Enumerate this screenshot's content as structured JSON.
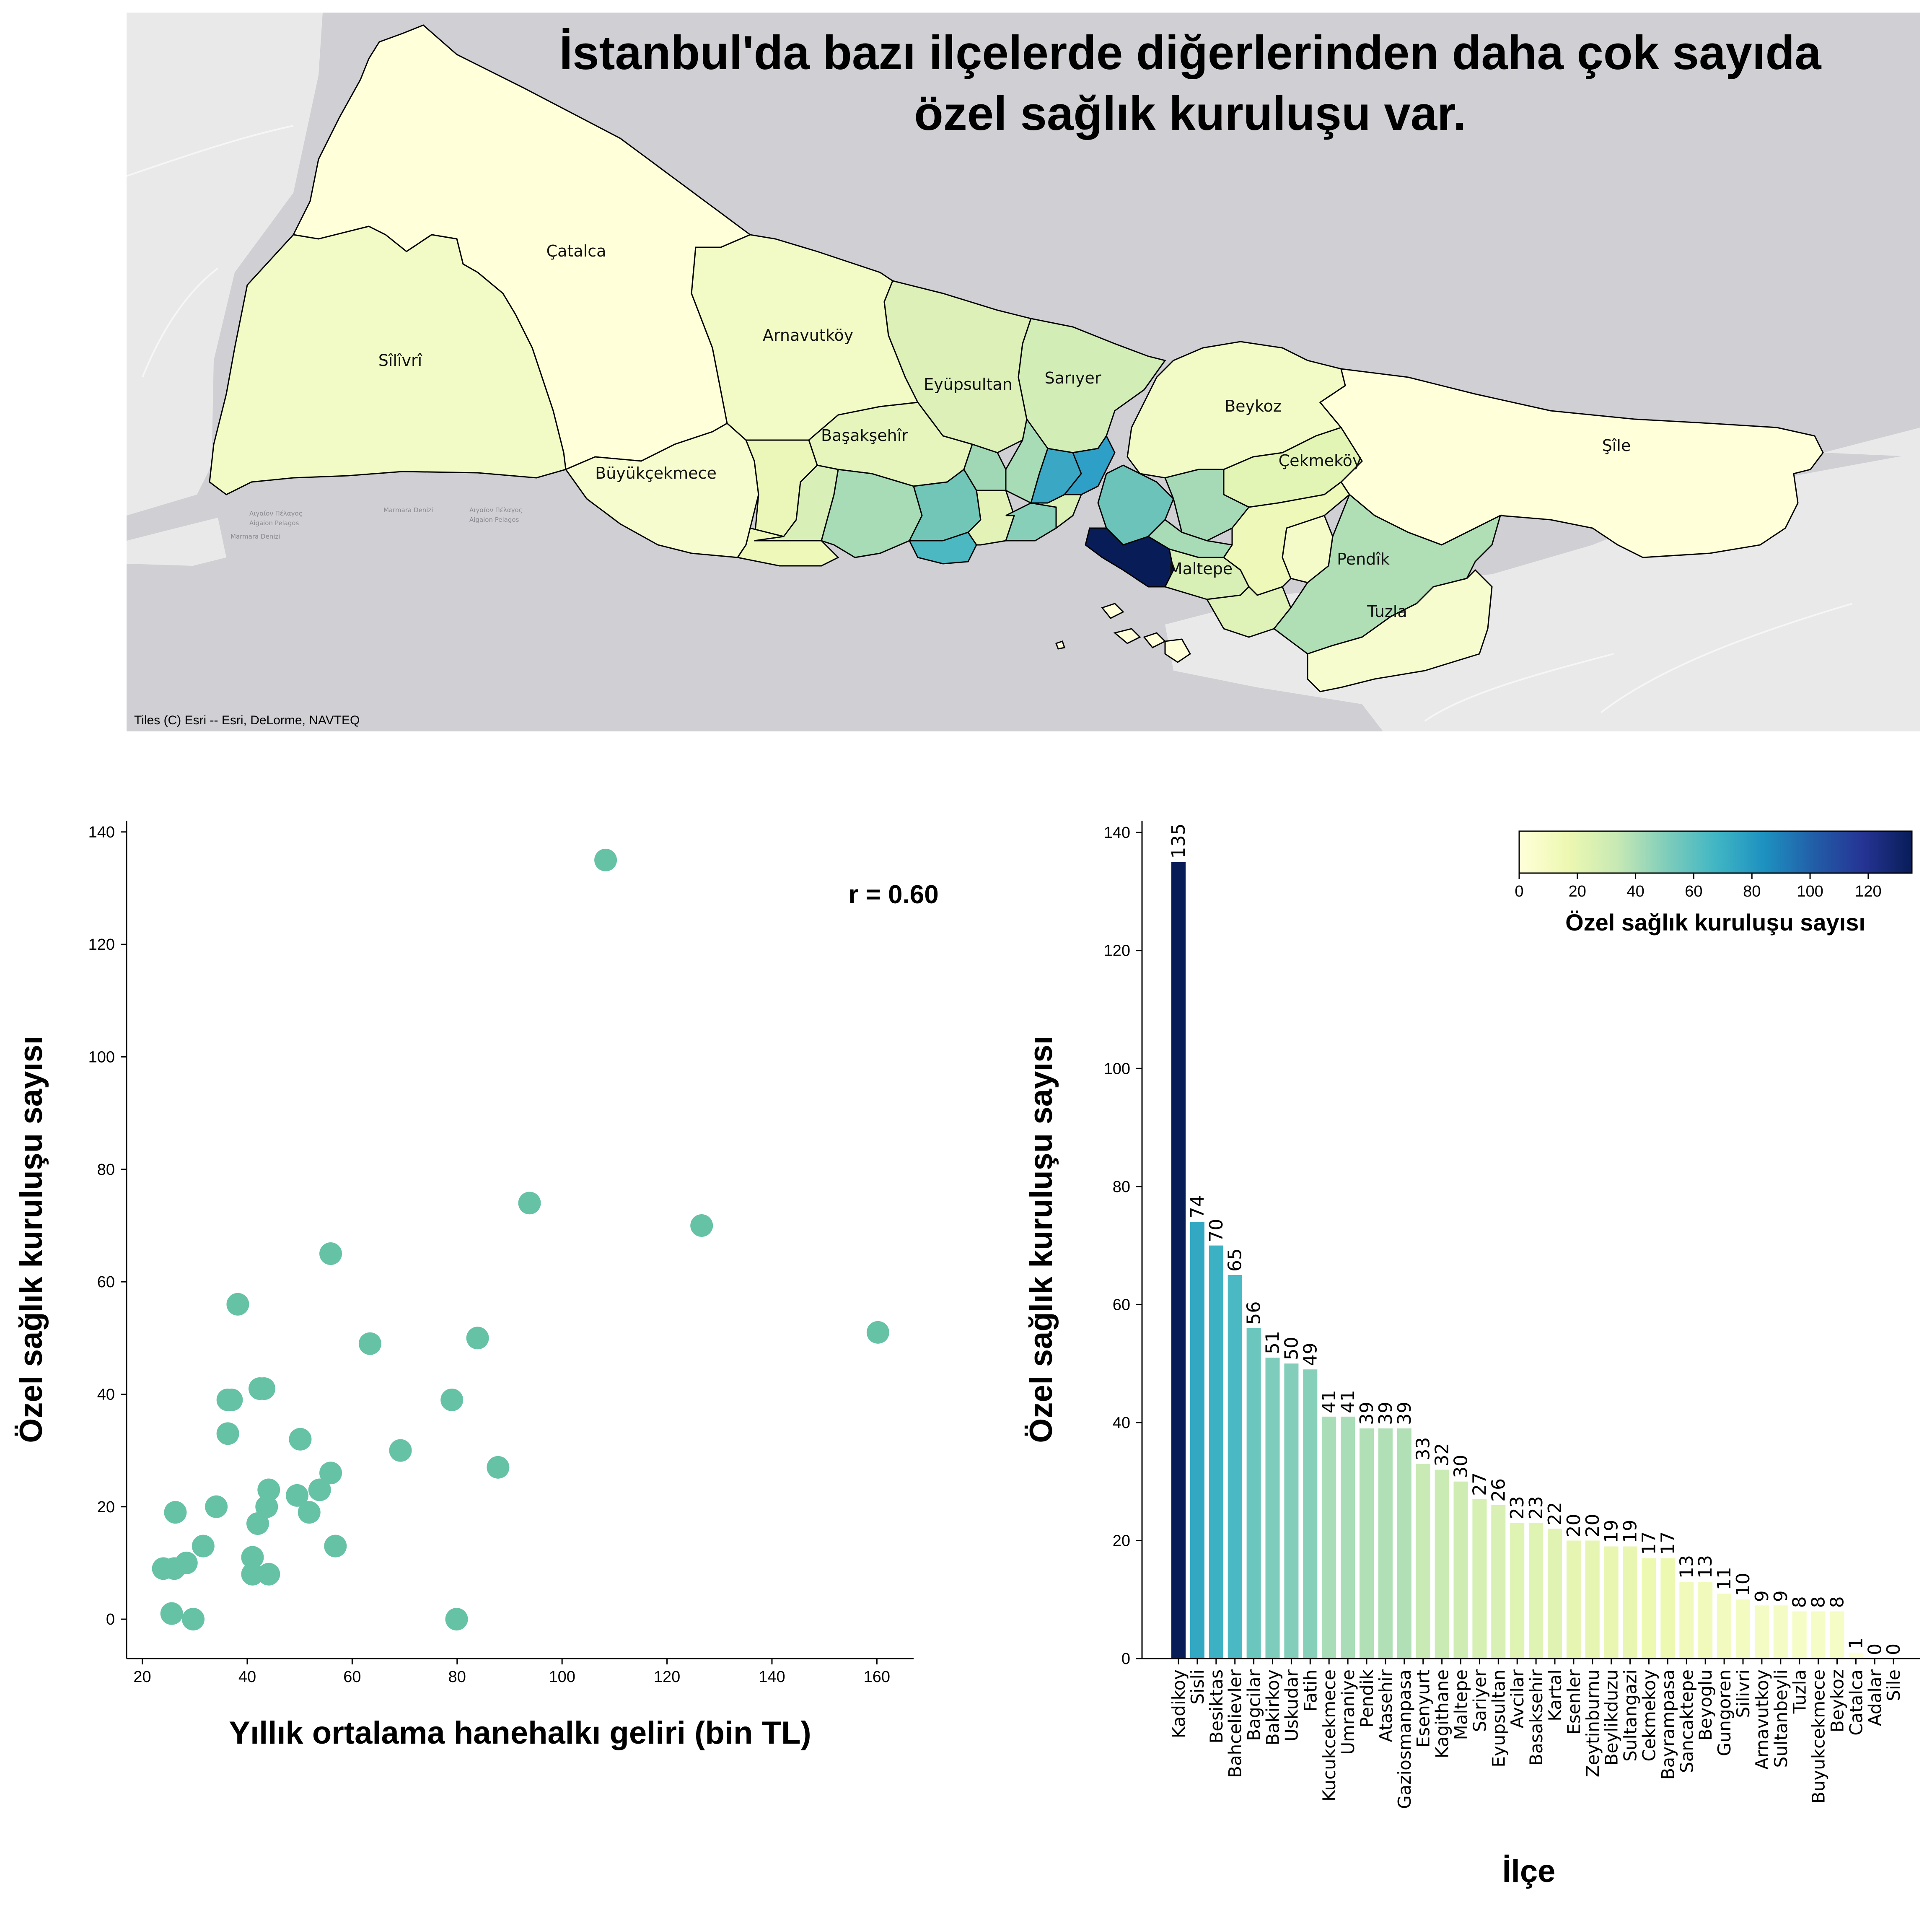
{
  "figure": {
    "title_line1": "İstanbul'da bazı ilçelerde diğerlerinden daha çok sayıda",
    "title_line2": "özel sağlık kuruluşu var."
  },
  "map": {
    "attribution": "Tiles (C) Esri -- Esri, DeLorme, NAVTEQ",
    "sea_labels": [
      "Αιγαίον Πέλαγος",
      "Aigaion Pelagos",
      "Marmara Denizi",
      "Marmara Denizi",
      "Αιγαίον Πέλαγος",
      "Aigaion Pelagos"
    ],
    "district_labels": [
      "Çatalca",
      "Sîlîvrî",
      "Arnavutköy",
      "Eyüpsultan",
      "Sarıyer",
      "Başakşehîr",
      "Büyükçekmece",
      "Beykoz",
      "Çekmeköy",
      "Şîle",
      "Maltepe",
      "Pendîk",
      "Tuzla"
    ],
    "colors": {
      "sea": "#cfcfd4",
      "land_background": "#e9e9e9",
      "district_border": "#000000"
    }
  },
  "colorbar": {
    "label": "Özel sağlık kuruluşu sayısı",
    "ticks": [
      "0",
      "20",
      "40",
      "60",
      "80",
      "100",
      "120"
    ],
    "colormap": "YlGnBu",
    "range": [
      0,
      135
    ]
  },
  "chart_data": [
    {
      "type": "scatter",
      "title": "",
      "xlabel": "Yıllık ortalama hanehalkı geliri (bin TL)",
      "ylabel": "Özel sağlık kuruluşu sayısı",
      "annotation": "r = 0.60",
      "xlim": [
        17,
        167
      ],
      "ylim": [
        -7,
        142
      ],
      "xticks": [
        20,
        40,
        60,
        80,
        100,
        120,
        140,
        160
      ],
      "yticks": [
        0,
        20,
        40,
        60,
        80,
        100,
        120,
        140
      ],
      "marker_color": "#66c2a5",
      "grid": false,
      "points": [
        [
          108.3,
          135
        ],
        [
          93.8,
          74
        ],
        [
          126.6,
          70
        ],
        [
          55.9,
          65
        ],
        [
          38.2,
          56
        ],
        [
          160.2,
          51
        ],
        [
          83.9,
          50
        ],
        [
          63.4,
          49
        ],
        [
          43.2,
          41
        ],
        [
          42.4,
          41
        ],
        [
          36.3,
          39
        ],
        [
          37.0,
          39
        ],
        [
          79.0,
          39
        ],
        [
          36.3,
          33
        ],
        [
          50.1,
          32
        ],
        [
          69.2,
          30
        ],
        [
          87.8,
          27
        ],
        [
          55.9,
          26
        ],
        [
          44.1,
          23
        ],
        [
          53.8,
          23
        ],
        [
          49.5,
          22
        ],
        [
          34.1,
          20
        ],
        [
          43.7,
          20
        ],
        [
          26.3,
          19
        ],
        [
          51.8,
          19
        ],
        [
          42.0,
          17
        ],
        [
          31.6,
          13
        ],
        [
          56.8,
          13
        ],
        [
          41.0,
          11
        ],
        [
          28.4,
          10
        ],
        [
          24.0,
          9
        ],
        [
          26.1,
          9
        ],
        [
          41.0,
          8
        ],
        [
          44.1,
          8
        ],
        [
          25.6,
          1
        ],
        [
          29.7,
          0
        ],
        [
          79.9,
          0
        ]
      ]
    },
    {
      "type": "bar",
      "title": "",
      "xlabel": "İlçe",
      "ylabel": "Özel sağlık kuruluşu sayısı",
      "ylim": [
        0,
        142
      ],
      "yticks": [
        0,
        20,
        40,
        60,
        80,
        100,
        120,
        140
      ],
      "grid": false,
      "colormap": "YlGnBu",
      "categories": [
        "Kadikoy",
        "Sisli",
        "Besiktas",
        "Bahcelievler",
        "Bagcilar",
        "Bakirkoy",
        "Uskudar",
        "Fatih",
        "Kucukcekmece",
        "Umraniye",
        "Pendik",
        "Atasehir",
        "Gaziosmanpasa",
        "Esenyurt",
        "Kagithane",
        "Maltepe",
        "Sariyer",
        "Eyupsultan",
        "Avcilar",
        "Basaksehir",
        "Kartal",
        "Esenler",
        "Zeytinburnu",
        "Beylikduzu",
        "Sultangazi",
        "Cekmekoy",
        "Bayrampasa",
        "Sancaktepe",
        "Beyoglu",
        "Gungoren",
        "Silivri",
        "Arnavutkoy",
        "Sultanbeyli",
        "Tuzla",
        "Buyukcekmece",
        "Beykoz",
        "Catalca",
        "Adalar",
        "Sile"
      ],
      "values": [
        135,
        74,
        70,
        65,
        56,
        51,
        50,
        49,
        41,
        41,
        39,
        39,
        39,
        33,
        32,
        30,
        27,
        26,
        23,
        23,
        22,
        20,
        20,
        19,
        19,
        17,
        17,
        13,
        13,
        11,
        10,
        9,
        9,
        8,
        8,
        8,
        1,
        0,
        0
      ]
    }
  ]
}
